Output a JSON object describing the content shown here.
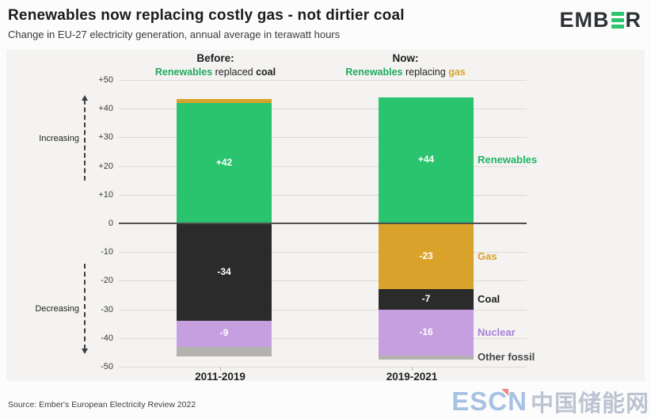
{
  "header": {
    "title": "Renewables now replacing costly gas - not dirtier coal",
    "subtitle": "Change in EU-27 electricity generation, annual average in terawatt hours",
    "logo": {
      "pre": "EMB",
      "post": "R",
      "green_e_color": "#2dc46f"
    }
  },
  "annotations": {
    "before_label": "Before:",
    "before_parts": [
      {
        "text": "Renewables",
        "color": "#21a95f",
        "bold": true
      },
      {
        "text": " replaced ",
        "color": "#222222",
        "bold": false
      },
      {
        "text": "coal",
        "color": "#1d1d1d",
        "bold": true
      }
    ],
    "now_label": "Now:",
    "now_parts": [
      {
        "text": "Renewables",
        "color": "#21a95f",
        "bold": true
      },
      {
        "text": " replacing ",
        "color": "#222222",
        "bold": false
      },
      {
        "text": "gas",
        "color": "#d9a32b",
        "bold": true
      }
    ],
    "increasing": "Increasing",
    "decreasing": "Decreasing"
  },
  "chart_data": {
    "type": "bar",
    "stacked": true,
    "title": "Renewables now replacing costly gas - not dirtier coal",
    "unit": "terawatt hours (TWh)",
    "categories": [
      "2011-2019",
      "2019-2021"
    ],
    "series": [
      {
        "name": "Renewables",
        "color": "#2ac46e",
        "legend_color": "#1fb364",
        "values": [
          42,
          44
        ],
        "labels": [
          "+42",
          "+44"
        ]
      },
      {
        "name": "Gas",
        "color": "#d9a32b",
        "legend_color": "#d9a02a",
        "values": [
          1.5,
          -23
        ],
        "labels": [
          "",
          "-23"
        ]
      },
      {
        "name": "Coal",
        "color": "#2b2b2b",
        "legend_color": "#1d1d1d",
        "values": [
          -34,
          -7
        ],
        "labels": [
          "-34",
          "-7"
        ]
      },
      {
        "name": "Nuclear",
        "color": "#c69fe0",
        "legend_color": "#a87fd6",
        "values": [
          -9,
          -16
        ],
        "labels": [
          "-9",
          "-16"
        ]
      },
      {
        "name": "Other fossil",
        "color": "#b4b2af",
        "legend_color": "#474747",
        "values": [
          -3.5,
          -1.5
        ],
        "labels": [
          "",
          ""
        ]
      }
    ],
    "ylim": [
      -50,
      50
    ],
    "yticks": [
      {
        "label": "+50",
        "value": 50
      },
      {
        "label": "+40",
        "value": 40
      },
      {
        "label": "+30",
        "value": 30
      },
      {
        "label": "+20",
        "value": 20
      },
      {
        "label": "+10",
        "value": 10
      },
      {
        "label": "0",
        "value": 0
      },
      {
        "label": "-10",
        "value": -10
      },
      {
        "label": "-20",
        "value": -20
      },
      {
        "label": "-30",
        "value": -30
      },
      {
        "label": "-40",
        "value": -40
      },
      {
        "label": "-50",
        "value": -50
      }
    ],
    "legend_position": "right",
    "grid": true
  },
  "footer": {
    "source": "Source: Ember's European Electricity Review 2022",
    "watermark": {
      "escn": "ESCN",
      "chinese": "中国储能网"
    }
  }
}
